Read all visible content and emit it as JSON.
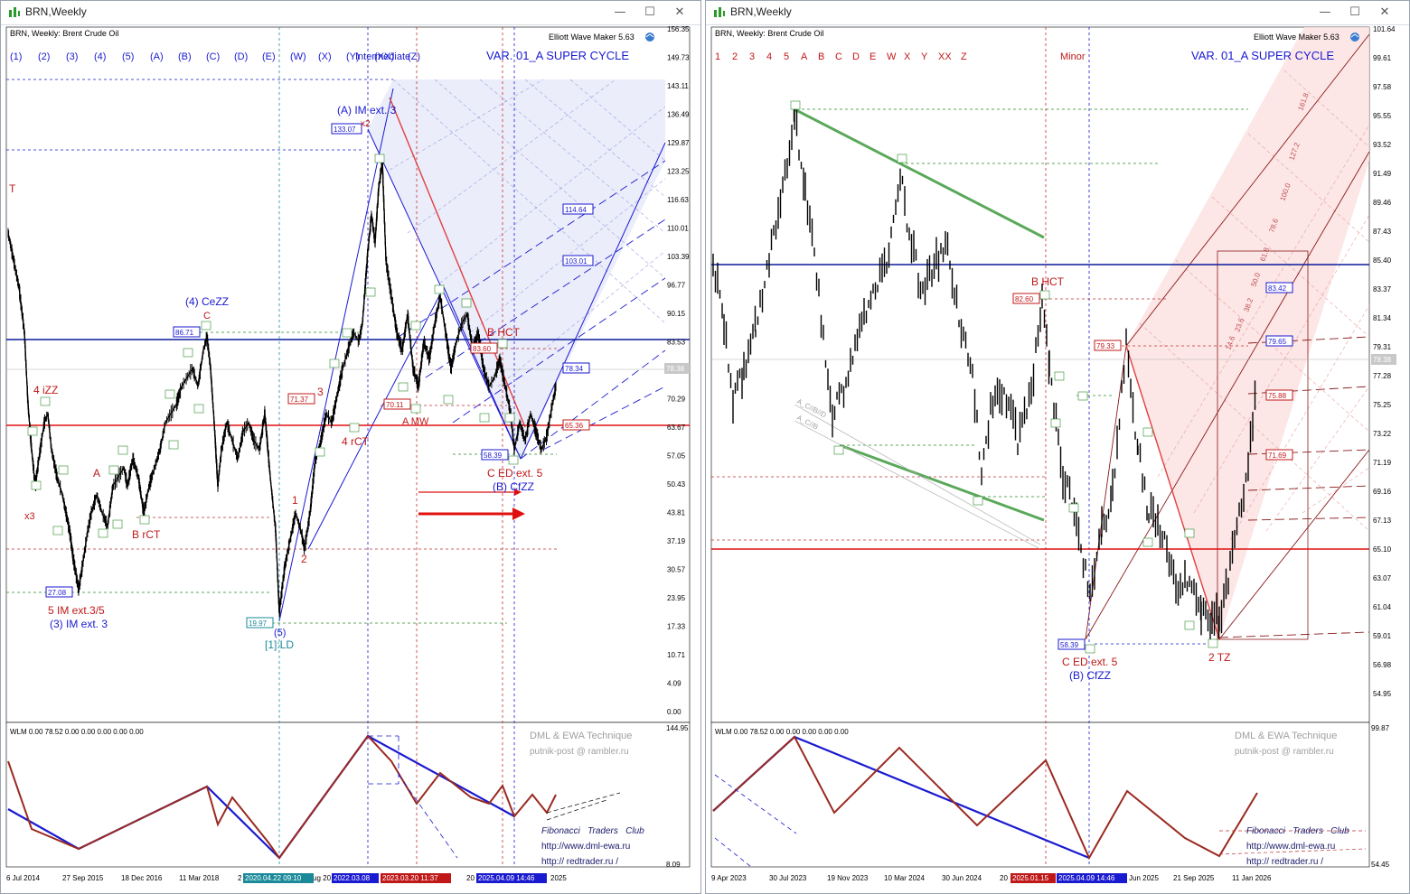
{
  "left": {
    "window_title": "BRN,Weekly",
    "chart_caption": "BRN, Weekly:  Brent Crude Oil",
    "plugin": "Elliott Wave Maker 5.63",
    "variant": "VAR. 01_A SUPER CYCLE",
    "degree": "Intermediate",
    "wave_buttons": [
      "(1)",
      "(2)",
      "(3)",
      "(4)",
      "(5)",
      "(A)",
      "(B)",
      "(C)",
      "(D)",
      "(E)",
      "(W)",
      "(X)",
      "(Y)",
      "(XX)",
      "(Z)"
    ],
    "price_axis": [
      "156.35",
      "149.73",
      "143.11",
      "136.49",
      "129.87",
      "123.25",
      "116.63",
      "110.01",
      "103.39",
      "96.77",
      "90.15",
      "83.53",
      "76.91",
      "70.29",
      "63.67",
      "57.05",
      "50.43",
      "43.81",
      "37.19",
      "30.57",
      "23.95",
      "17.33",
      "10.71",
      "4.09",
      "0.00"
    ],
    "current_price": "78.38",
    "price_boxes": {
      "p133": "133.07",
      "p114": "114.64",
      "p103": "103.01",
      "p86": "86.71",
      "p78": "78.34",
      "p71": "71.37",
      "p70": "70.11",
      "p65": "65.36",
      "p58": "58.39",
      "p27": "27.08",
      "p19": "19.97",
      "p83": "83.60"
    },
    "labels": {
      "a_im": "(A) IM ext. 3",
      "x2": "x2",
      "ceZZ": "(4) CeZZ",
      "c_red": "C",
      "iZZ": "4 iZZ",
      "a_red": "A",
      "x3": "x3",
      "brct": "B rCT",
      "im35": "5 IM ext.3/5",
      "im3": "(3) IM ext. 3",
      "ld": "[1]:LD",
      "five": "(5)",
      "one": "1",
      "two": "2",
      "three": "3",
      "rct4": "4 rCT",
      "bhct": "B HCT",
      "amw": "A MW",
      "ced": "C ED ext. 5",
      "bcfzz": "(B) CfZZ",
      "t": "T"
    },
    "ind_label": "WLM 0.00 78.52 0.00 0.00 0.00 0.00 0.00",
    "ind_axis_top": "144.95",
    "ind_axis_bottom": "8.09",
    "credit1": "DML & EWA Technique",
    "credit2": "putnik-post @ rambler.ru",
    "club1": "Fibonacci   Traders   Club",
    "club2": "http://www.dml-ewa.ru",
    "club3": "http:// redtrader.ru /",
    "date_axis": [
      "6 Jul 2014",
      "27 Sep 2015",
      "18 Dec 2016",
      "11 Mar 2018",
      "2",
      "ug 20",
      "20",
      "2025"
    ],
    "date_flags": [
      "2020.04.22 09:10",
      "2022.03.08",
      "2023.03.20 11:37",
      "2025.04.09 14:46"
    ]
  },
  "right": {
    "window_title": "BRN,Weekly",
    "chart_caption": "BRN, Weekly:  Brent Crude Oil",
    "plugin": "Elliott Wave Maker 5.63",
    "variant": "VAR. 01_A SUPER CYCLE",
    "degree": "Minor",
    "wave_buttons": [
      "1",
      "2",
      "3",
      "4",
      "5",
      "A",
      "B",
      "C",
      "D",
      "E",
      "W",
      "X",
      "Y",
      "XX",
      "Z"
    ],
    "price_axis": [
      "101.64",
      "99.61",
      "97.58",
      "95.55",
      "93.52",
      "91.49",
      "89.46",
      "87.43",
      "85.40",
      "83.37",
      "81.34",
      "79.31",
      "77.28",
      "75.25",
      "73.22",
      "71.19",
      "69.16",
      "67.13",
      "65.10",
      "63.07",
      "61.04",
      "59.01",
      "56.98",
      "54.95"
    ],
    "current_price": "78.38",
    "price_boxes": {
      "p82": "82.60",
      "p79": "79.33",
      "p83": "83.42",
      "p79b": "79.65",
      "p75": "75.88",
      "p71": "71.69",
      "p58": "58.39"
    },
    "labels": {
      "bhct": "B HCT",
      "ced": "C ED ext. 5",
      "bcfzz": "(B) CfZZ",
      "tz": "2 TZ",
      "acbd": "A_C//B//D",
      "acb": "A_C//B"
    },
    "fib_levels": [
      "161.8",
      "127.2",
      "100.0",
      "78.6",
      "61.8",
      "50.0",
      "38.2",
      "23.6",
      "14.6"
    ],
    "ind_label": "WLM 0.00 78.52 0.00 0.00 0.00 0.00 0.00",
    "ind_axis_top": "99.87",
    "ind_axis_bottom": "54.45",
    "credit1": "DML & EWA Technique",
    "credit2": "putnik-post @ rambler.ru",
    "club1": "Fibonacci   Traders   Club",
    "club2": "http://www.dml-ewa.ru",
    "club3": "http:// redtrader.ru /",
    "date_axis": [
      "9 Apr 2023",
      "30 Jul 2023",
      "19 Nov 2023",
      "10 Mar 2024",
      "30 Jun 2024",
      "20",
      "Jun 2025",
      "21 Sep 2025",
      "11 Jan 2026"
    ],
    "date_flags": [
      "2025.01.15",
      "2025.04.09 14:46"
    ]
  },
  "colors": {
    "wave_blue": "#1a1ad0",
    "wave_red": "#c01818",
    "wave_green": "#2a8a2a",
    "hline_blue": "#0a1a9a",
    "hline_red": "#e01010",
    "ind_brown": "#9a2a20",
    "channel_fill": "#e8eaf8",
    "red_fill": "#fbe2e2"
  }
}
